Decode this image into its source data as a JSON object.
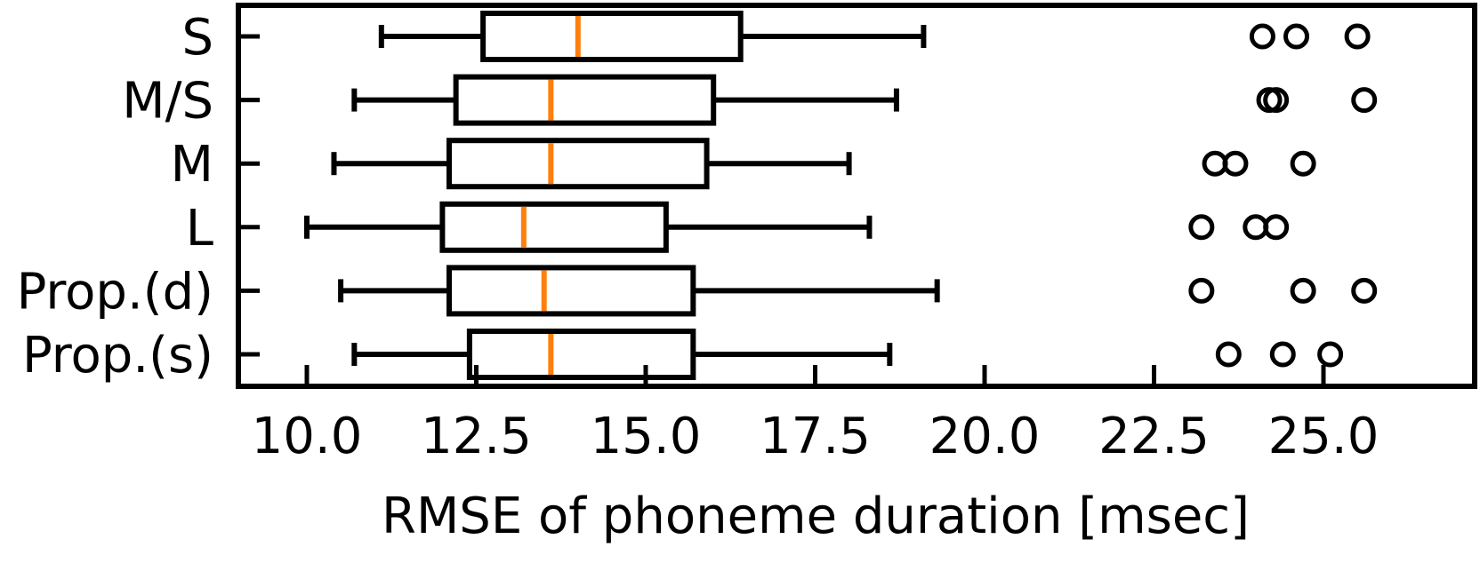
{
  "chart_data": {
    "type": "boxplot",
    "orientation": "horizontal",
    "xlabel": "RMSE of phoneme duration [msec]",
    "ylabel": "",
    "title": "",
    "xlim": [
      9.0,
      25.5
    ],
    "x_ticks": [
      10.0,
      12.5,
      15.0,
      17.5,
      20.0,
      22.5,
      25.0
    ],
    "x_tick_labels": [
      "10.0",
      "12.5",
      "15.0",
      "17.5",
      "20.0",
      "22.5",
      "25.0"
    ],
    "grid": false,
    "median_color": "#ff7f0e",
    "box_color": "#000000",
    "categories": [
      "S",
      "M/S",
      "M",
      "L",
      "Prop.(d)",
      "Prop.(s)"
    ],
    "boxes": [
      {
        "label": "S",
        "whisker_low": 11.1,
        "q1": 12.6,
        "median": 14.0,
        "q3": 16.4,
        "whisker_high": 19.1,
        "outliers": [
          24.1,
          24.6,
          25.5
        ]
      },
      {
        "label": "M/S",
        "whisker_low": 10.7,
        "q1": 12.2,
        "median": 13.6,
        "q3": 16.0,
        "whisker_high": 18.7,
        "outliers": [
          24.2,
          24.3,
          25.6
        ]
      },
      {
        "label": "M",
        "whisker_low": 10.4,
        "q1": 12.1,
        "median": 13.6,
        "q3": 15.9,
        "whisker_high": 18.0,
        "outliers": [
          23.4,
          23.7,
          24.7
        ]
      },
      {
        "label": "L",
        "whisker_low": 10.0,
        "q1": 12.0,
        "median": 13.2,
        "q3": 15.3,
        "whisker_high": 18.3,
        "outliers": [
          23.2,
          24.0,
          24.3
        ]
      },
      {
        "label": "Prop.(d)",
        "whisker_low": 10.5,
        "q1": 12.1,
        "median": 13.5,
        "q3": 15.7,
        "whisker_high": 19.3,
        "outliers": [
          23.2,
          24.7,
          25.6
        ]
      },
      {
        "label": "Prop.(s)",
        "whisker_low": 10.7,
        "q1": 12.4,
        "median": 13.6,
        "q3": 15.7,
        "whisker_high": 18.6,
        "outliers": [
          23.6,
          24.4,
          25.1
        ]
      }
    ]
  }
}
